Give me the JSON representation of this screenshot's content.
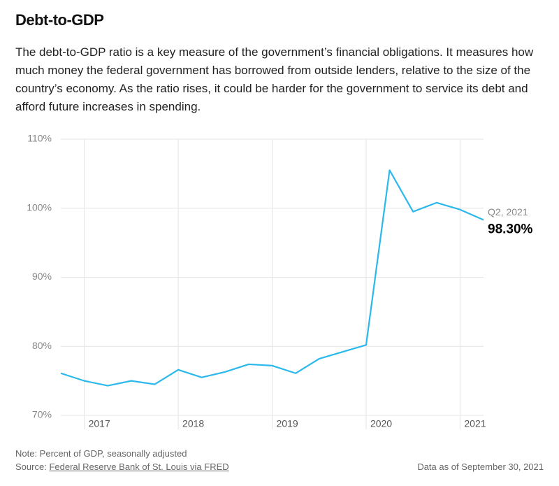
{
  "chart_data": {
    "type": "line",
    "title": "Debt-to-GDP",
    "description": "The debt-to-GDP ratio is a key measure of the government’s financial obligations. It measures how much money the federal government has borrowed from outside lenders, relative to the size of the country’s economy. As the ratio rises, it could be harder for the government to service its debt and afford future increases in spending.",
    "x": [
      2016.75,
      2017,
      2017.25,
      2017.5,
      2017.75,
      2018,
      2018.25,
      2018.5,
      2018.75,
      2019,
      2019.25,
      2019.5,
      2019.75,
      2020,
      2020.25,
      2020.5,
      2020.75,
      2021,
      2021.25
    ],
    "series": [
      {
        "name": "Debt-to-GDP",
        "color": "#2bb8ea",
        "values": [
          76.1,
          75.0,
          74.3,
          75.0,
          74.5,
          76.6,
          75.5,
          76.3,
          77.4,
          77.2,
          76.1,
          78.2,
          79.2,
          80.2,
          105.5,
          99.5,
          100.8,
          99.8,
          98.3
        ],
        "value_labels": [
          null,
          null,
          null,
          null,
          null,
          null,
          null,
          null,
          null,
          null,
          null,
          null,
          null,
          null,
          null,
          null,
          null,
          null,
          "98.30%"
        ]
      }
    ],
    "last_point_label": "Q2, 2021",
    "xlim": [
      2016.75,
      2021.25
    ],
    "xticks": [
      2017,
      2018,
      2019,
      2020,
      2021
    ],
    "ylim": [
      70,
      110
    ],
    "yticks": [
      {
        "value": 70,
        "label": "70%"
      },
      {
        "value": 80,
        "label": "80%"
      },
      {
        "value": 90,
        "label": "90%"
      },
      {
        "value": 100,
        "label": "100%"
      },
      {
        "value": 110,
        "label": "110%"
      }
    ],
    "grid": true,
    "note": "Note: Percent of GDP, seasonally adjusted",
    "source_prefix": "Source:",
    "source": "Federal Reserve Bank of St. Louis via FRED",
    "data_date": "Data as of September 30, 2021"
  }
}
